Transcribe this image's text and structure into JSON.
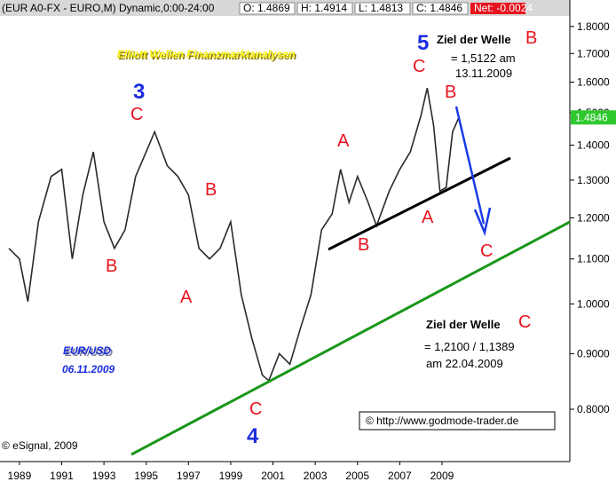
{
  "chart_data": {
    "type": "line",
    "header": {
      "symbol": "(EUR A0-FX - EURO,M) Dynamic,0:00-24:00",
      "open": "O: 1.4869",
      "high": "H: 1.4914",
      "low": "L: 1.4813",
      "close": "C: 1.4846",
      "net": "Net: -0.0024"
    },
    "x": [
      1988.5,
      1989.0,
      1989.4,
      1989.9,
      1990.5,
      1991.0,
      1991.5,
      1992.0,
      1992.5,
      1993.0,
      1993.5,
      1994.0,
      1994.5,
      1995.0,
      1995.4,
      1996.0,
      1996.5,
      1997.0,
      1997.5,
      1998.0,
      1998.5,
      1999.0,
      1999.5,
      2000.0,
      2000.5,
      2000.8,
      2001.3,
      2001.8,
      2002.3,
      2002.8,
      2003.3,
      2003.8,
      2004.2,
      2004.6,
      2005.0,
      2005.5,
      2005.9,
      2006.5,
      2007.0,
      2007.5,
      2008.0,
      2008.3,
      2008.6,
      2008.9,
      2009.2,
      2009.5,
      2009.8
    ],
    "series": [
      {
        "color": "#2a2a2a",
        "values": [
          1.125,
          1.1,
          1.005,
          1.19,
          1.31,
          1.33,
          1.1,
          1.26,
          1.38,
          1.19,
          1.125,
          1.17,
          1.31,
          1.38,
          1.44,
          1.34,
          1.31,
          1.26,
          1.125,
          1.1,
          1.125,
          1.19,
          1.02,
          0.93,
          0.86,
          0.85,
          0.9,
          0.88,
          0.95,
          1.02,
          1.17,
          1.21,
          1.33,
          1.24,
          1.31,
          1.24,
          1.18,
          1.27,
          1.33,
          1.38,
          1.49,
          1.58,
          1.46,
          1.27,
          1.28,
          1.44,
          1.4846
        ]
      }
    ],
    "last_value": 1.4846,
    "xlim": [
      1988.08,
      2015.05
    ],
    "xticks": [
      1989,
      1991,
      1993,
      1995,
      1997,
      1999,
      2001,
      2003,
      2005,
      2007,
      2009
    ],
    "ylim": [
      0.716,
      1.904
    ],
    "log_y": true,
    "grid": false,
    "yticks": [
      {
        "value": 0.8,
        "label": "0.8000"
      },
      {
        "value": 0.9,
        "label": "0.9000"
      },
      {
        "value": 1.0,
        "label": "1.0000"
      },
      {
        "value": 1.1,
        "label": "1.1000"
      },
      {
        "value": 1.2,
        "label": "1.2000"
      },
      {
        "value": 1.3,
        "label": "1.3000"
      },
      {
        "value": 1.4,
        "label": "1.4000"
      },
      {
        "value": 1.5,
        "label": "1.5000"
      },
      {
        "value": 1.6,
        "label": "1.6000"
      },
      {
        "value": 1.7,
        "label": "1.7000"
      },
      {
        "value": 1.8,
        "label": "1.8000"
      }
    ],
    "annotations": [
      "Elliott Wellen Finanzmarktanalysen",
      "3",
      "C",
      "B",
      "A",
      "B",
      "C",
      "4",
      "A",
      "B",
      "C",
      "5",
      "A",
      "B",
      "C",
      "Ziel der Welle",
      "B",
      "= 1,5122 am",
      "13.11.2009",
      "Ziel der Welle",
      "C",
      "= 1,2100 / 1,1389",
      "am 22.04.2009",
      "EUR/USD",
      "06.11.2009",
      "© http://www.godmode-trader.de",
      "© eSignal, 2009"
    ]
  }
}
